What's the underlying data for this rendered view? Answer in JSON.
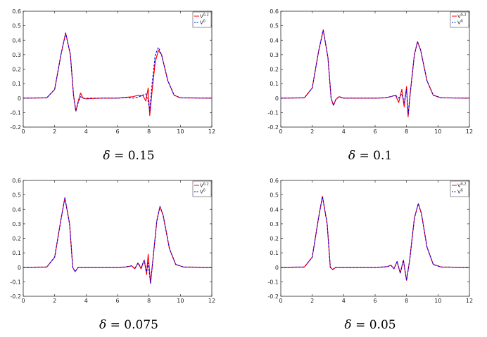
{
  "chart_data": [
    {
      "type": "line",
      "caption": "δ = 0.15",
      "xlim": [
        0,
        12
      ],
      "ylim": [
        -0.2,
        0.6
      ],
      "xticks": [
        "0",
        "2",
        "4",
        "6",
        "8",
        "10",
        "12"
      ],
      "yticks": [
        "-0.2",
        "-0.1",
        "0",
        "0.1",
        "0.2",
        "0.3",
        "0.4",
        "0.5",
        "0.6"
      ],
      "legend": {
        "position": "top-right",
        "entries": [
          "V^{δ,2}",
          "V^δ"
        ]
      },
      "series": [
        {
          "name": "V^{δ,2}",
          "color": "#ff0000",
          "style": "solid",
          "points": [
            [
              0,
              0
            ],
            [
              1.5,
              0.002
            ],
            [
              2.0,
              0.06
            ],
            [
              2.4,
              0.3
            ],
            [
              2.7,
              0.45
            ],
            [
              3.0,
              0.3
            ],
            [
              3.2,
              0.02
            ],
            [
              3.35,
              -0.09
            ],
            [
              3.5,
              -0.02
            ],
            [
              3.65,
              0.035
            ],
            [
              3.8,
              0.0
            ],
            [
              4.0,
              -0.005
            ],
            [
              5,
              0
            ],
            [
              6,
              0
            ],
            [
              6.5,
              0.005
            ],
            [
              7.0,
              0.01
            ],
            [
              7.3,
              0.02
            ],
            [
              7.6,
              0.02
            ],
            [
              7.8,
              -0.02
            ],
            [
              7.95,
              0.07
            ],
            [
              8.05,
              -0.12
            ],
            [
              8.2,
              0.05
            ],
            [
              8.4,
              0.25
            ],
            [
              8.6,
              0.33
            ],
            [
              8.8,
              0.3
            ],
            [
              9.2,
              0.12
            ],
            [
              9.6,
              0.02
            ],
            [
              10,
              0.002
            ],
            [
              12,
              0
            ]
          ]
        },
        {
          "name": "V^δ",
          "color": "#0000ff",
          "style": "dashed",
          "points": [
            [
              0,
              0
            ],
            [
              1.5,
              0.002
            ],
            [
              2.0,
              0.06
            ],
            [
              2.4,
              0.3
            ],
            [
              2.7,
              0.45
            ],
            [
              3.0,
              0.3
            ],
            [
              3.2,
              0.02
            ],
            [
              3.35,
              -0.09
            ],
            [
              3.5,
              -0.03
            ],
            [
              3.65,
              0.01
            ],
            [
              3.8,
              0.0
            ],
            [
              4.0,
              0.0
            ],
            [
              5,
              0
            ],
            [
              6,
              0
            ],
            [
              6.5,
              0.005
            ],
            [
              7.0,
              0.0
            ],
            [
              7.3,
              0.005
            ],
            [
              7.6,
              0.02
            ],
            [
              7.8,
              0.03
            ],
            [
              7.95,
              -0.02
            ],
            [
              8.05,
              -0.09
            ],
            [
              8.2,
              0.1
            ],
            [
              8.4,
              0.3
            ],
            [
              8.6,
              0.35
            ],
            [
              8.8,
              0.3
            ],
            [
              9.2,
              0.12
            ],
            [
              9.6,
              0.02
            ],
            [
              10,
              0.002
            ],
            [
              12,
              0
            ]
          ]
        }
      ]
    },
    {
      "type": "line",
      "caption": "δ = 0.1",
      "xlim": [
        0,
        12
      ],
      "ylim": [
        -0.2,
        0.6
      ],
      "xticks": [
        "0",
        "2",
        "4",
        "6",
        "8",
        "10",
        "12"
      ],
      "yticks": [
        "-0.2",
        "-0.1",
        "0",
        "0.1",
        "0.2",
        "0.3",
        "0.4",
        "0.5",
        "0.6"
      ],
      "legend": {
        "position": "top-right",
        "entries": [
          "V^{δ,2}",
          "V^δ"
        ]
      },
      "series": [
        {
          "name": "V^{δ,2}",
          "color": "#ff0000",
          "style": "solid",
          "points": [
            [
              0,
              0
            ],
            [
              1.5,
              0.002
            ],
            [
              2.0,
              0.07
            ],
            [
              2.4,
              0.32
            ],
            [
              2.7,
              0.47
            ],
            [
              3.0,
              0.28
            ],
            [
              3.2,
              0.0
            ],
            [
              3.35,
              -0.05
            ],
            [
              3.5,
              -0.01
            ],
            [
              3.7,
              0.01
            ],
            [
              4.0,
              0.0
            ],
            [
              5,
              0
            ],
            [
              6,
              0
            ],
            [
              6.6,
              0.002
            ],
            [
              7.0,
              0.01
            ],
            [
              7.3,
              0.02
            ],
            [
              7.5,
              -0.03
            ],
            [
              7.7,
              0.06
            ],
            [
              7.85,
              -0.06
            ],
            [
              8.0,
              0.08
            ],
            [
              8.1,
              -0.13
            ],
            [
              8.25,
              0.05
            ],
            [
              8.5,
              0.3
            ],
            [
              8.7,
              0.39
            ],
            [
              8.9,
              0.33
            ],
            [
              9.3,
              0.12
            ],
            [
              9.7,
              0.02
            ],
            [
              10.2,
              0.002
            ],
            [
              12,
              0
            ]
          ]
        },
        {
          "name": "V^δ",
          "color": "#0000ff",
          "style": "dashed",
          "points": [
            [
              0,
              0
            ],
            [
              1.5,
              0.002
            ],
            [
              2.0,
              0.07
            ],
            [
              2.4,
              0.32
            ],
            [
              2.7,
              0.47
            ],
            [
              3.0,
              0.28
            ],
            [
              3.2,
              0.0
            ],
            [
              3.35,
              -0.05
            ],
            [
              3.5,
              -0.01
            ],
            [
              3.7,
              0.01
            ],
            [
              4.0,
              0.0
            ],
            [
              5,
              0
            ],
            [
              6,
              0
            ],
            [
              6.6,
              0.002
            ],
            [
              7.0,
              0.01
            ],
            [
              7.3,
              0.02
            ],
            [
              7.5,
              0.0
            ],
            [
              7.7,
              0.03
            ],
            [
              7.85,
              -0.03
            ],
            [
              8.0,
              0.06
            ],
            [
              8.1,
              -0.11
            ],
            [
              8.25,
              0.05
            ],
            [
              8.5,
              0.3
            ],
            [
              8.7,
              0.39
            ],
            [
              8.9,
              0.33
            ],
            [
              9.3,
              0.12
            ],
            [
              9.7,
              0.02
            ],
            [
              10.2,
              0.002
            ],
            [
              12,
              0
            ]
          ]
        }
      ]
    },
    {
      "type": "line",
      "caption": "δ = 0.075",
      "xlim": [
        0,
        12
      ],
      "ylim": [
        -0.2,
        0.6
      ],
      "xticks": [
        "0",
        "2",
        "4",
        "6",
        "8",
        "10",
        "12"
      ],
      "yticks": [
        "-0.2",
        "-0.1",
        "0",
        "0.1",
        "0.2",
        "0.3",
        "0.4",
        "0.5",
        "0.6"
      ],
      "legend": {
        "position": "top-right",
        "entries": [
          "V^{δ,2}",
          "V^δ"
        ]
      },
      "series": [
        {
          "name": "V^{δ,2}",
          "color": "#ff0000",
          "style": "solid",
          "points": [
            [
              0,
              0
            ],
            [
              1.5,
              0.002
            ],
            [
              2.0,
              0.07
            ],
            [
              2.4,
              0.33
            ],
            [
              2.65,
              0.48
            ],
            [
              2.95,
              0.3
            ],
            [
              3.15,
              0.0
            ],
            [
              3.3,
              -0.03
            ],
            [
              3.5,
              0.0
            ],
            [
              4.0,
              0.0
            ],
            [
              5,
              0
            ],
            [
              6,
              0
            ],
            [
              6.5,
              0.002
            ],
            [
              6.9,
              0.01
            ],
            [
              7.1,
              -0.01
            ],
            [
              7.3,
              0.03
            ],
            [
              7.5,
              -0.01
            ],
            [
              7.7,
              0.05
            ],
            [
              7.85,
              -0.05
            ],
            [
              7.95,
              0.09
            ],
            [
              8.1,
              -0.11
            ],
            [
              8.25,
              0.05
            ],
            [
              8.5,
              0.32
            ],
            [
              8.7,
              0.42
            ],
            [
              8.9,
              0.36
            ],
            [
              9.3,
              0.13
            ],
            [
              9.7,
              0.02
            ],
            [
              10.2,
              0.002
            ],
            [
              12,
              0
            ]
          ]
        },
        {
          "name": "V^δ",
          "color": "#0000ff",
          "style": "dashed",
          "points": [
            [
              0,
              0
            ],
            [
              1.5,
              0.002
            ],
            [
              2.0,
              0.07
            ],
            [
              2.4,
              0.33
            ],
            [
              2.65,
              0.48
            ],
            [
              2.95,
              0.3
            ],
            [
              3.15,
              0.0
            ],
            [
              3.3,
              -0.03
            ],
            [
              3.5,
              0.0
            ],
            [
              4.0,
              0.0
            ],
            [
              5,
              0
            ],
            [
              6,
              0
            ],
            [
              6.5,
              0.002
            ],
            [
              6.9,
              0.01
            ],
            [
              7.1,
              -0.01
            ],
            [
              7.3,
              0.03
            ],
            [
              7.5,
              0.0
            ],
            [
              7.7,
              0.05
            ],
            [
              7.85,
              -0.03
            ],
            [
              7.95,
              0.03
            ],
            [
              8.1,
              -0.11
            ],
            [
              8.25,
              0.05
            ],
            [
              8.5,
              0.32
            ],
            [
              8.7,
              0.42
            ],
            [
              8.9,
              0.36
            ],
            [
              9.3,
              0.13
            ],
            [
              9.7,
              0.02
            ],
            [
              10.2,
              0.002
            ],
            [
              12,
              0
            ]
          ]
        }
      ]
    },
    {
      "type": "line",
      "caption": "δ = 0.05",
      "xlim": [
        0,
        12
      ],
      "ylim": [
        -0.2,
        0.6
      ],
      "xticks": [
        "0",
        "2",
        "4",
        "6",
        "8",
        "10",
        "12"
      ],
      "yticks": [
        "-0.2",
        "-0.1",
        "0",
        "0.1",
        "0.2",
        "0.3",
        "0.4",
        "0.5",
        "0.6"
      ],
      "legend": {
        "position": "top-right",
        "entries": [
          "V^{δ,2}",
          "V^δ"
        ]
      },
      "series": [
        {
          "name": "V^{δ,2}",
          "color": "#ff0000",
          "style": "solid",
          "points": [
            [
              0,
              0
            ],
            [
              1.5,
              0.002
            ],
            [
              2.0,
              0.07
            ],
            [
              2.4,
              0.34
            ],
            [
              2.65,
              0.49
            ],
            [
              2.95,
              0.3
            ],
            [
              3.15,
              0.0
            ],
            [
              3.3,
              -0.015
            ],
            [
              3.5,
              0.0
            ],
            [
              4.0,
              0.0
            ],
            [
              5,
              0
            ],
            [
              6,
              0
            ],
            [
              6.5,
              0.002
            ],
            [
              6.8,
              0.005
            ],
            [
              7.0,
              0.015
            ],
            [
              7.2,
              -0.01
            ],
            [
              7.4,
              0.04
            ],
            [
              7.6,
              -0.04
            ],
            [
              7.8,
              0.05
            ],
            [
              8.0,
              -0.09
            ],
            [
              8.2,
              0.05
            ],
            [
              8.5,
              0.34
            ],
            [
              8.75,
              0.44
            ],
            [
              8.95,
              0.37
            ],
            [
              9.3,
              0.14
            ],
            [
              9.7,
              0.02
            ],
            [
              10.2,
              0.002
            ],
            [
              12,
              0
            ]
          ]
        },
        {
          "name": "V^δ",
          "color": "#0000ff",
          "style": "dashed",
          "points": [
            [
              0,
              0
            ],
            [
              1.5,
              0.002
            ],
            [
              2.0,
              0.07
            ],
            [
              2.4,
              0.34
            ],
            [
              2.65,
              0.49
            ],
            [
              2.95,
              0.3
            ],
            [
              3.15,
              0.0
            ],
            [
              3.3,
              -0.015
            ],
            [
              3.5,
              0.0
            ],
            [
              4.0,
              0.0
            ],
            [
              5,
              0
            ],
            [
              6,
              0
            ],
            [
              6.5,
              0.002
            ],
            [
              6.8,
              0.005
            ],
            [
              7.0,
              0.015
            ],
            [
              7.2,
              -0.01
            ],
            [
              7.4,
              0.04
            ],
            [
              7.6,
              -0.04
            ],
            [
              7.8,
              0.05
            ],
            [
              8.0,
              -0.09
            ],
            [
              8.2,
              0.05
            ],
            [
              8.5,
              0.34
            ],
            [
              8.75,
              0.44
            ],
            [
              8.95,
              0.37
            ],
            [
              9.3,
              0.14
            ],
            [
              9.7,
              0.02
            ],
            [
              10.2,
              0.002
            ],
            [
              12,
              0
            ]
          ]
        }
      ]
    }
  ]
}
